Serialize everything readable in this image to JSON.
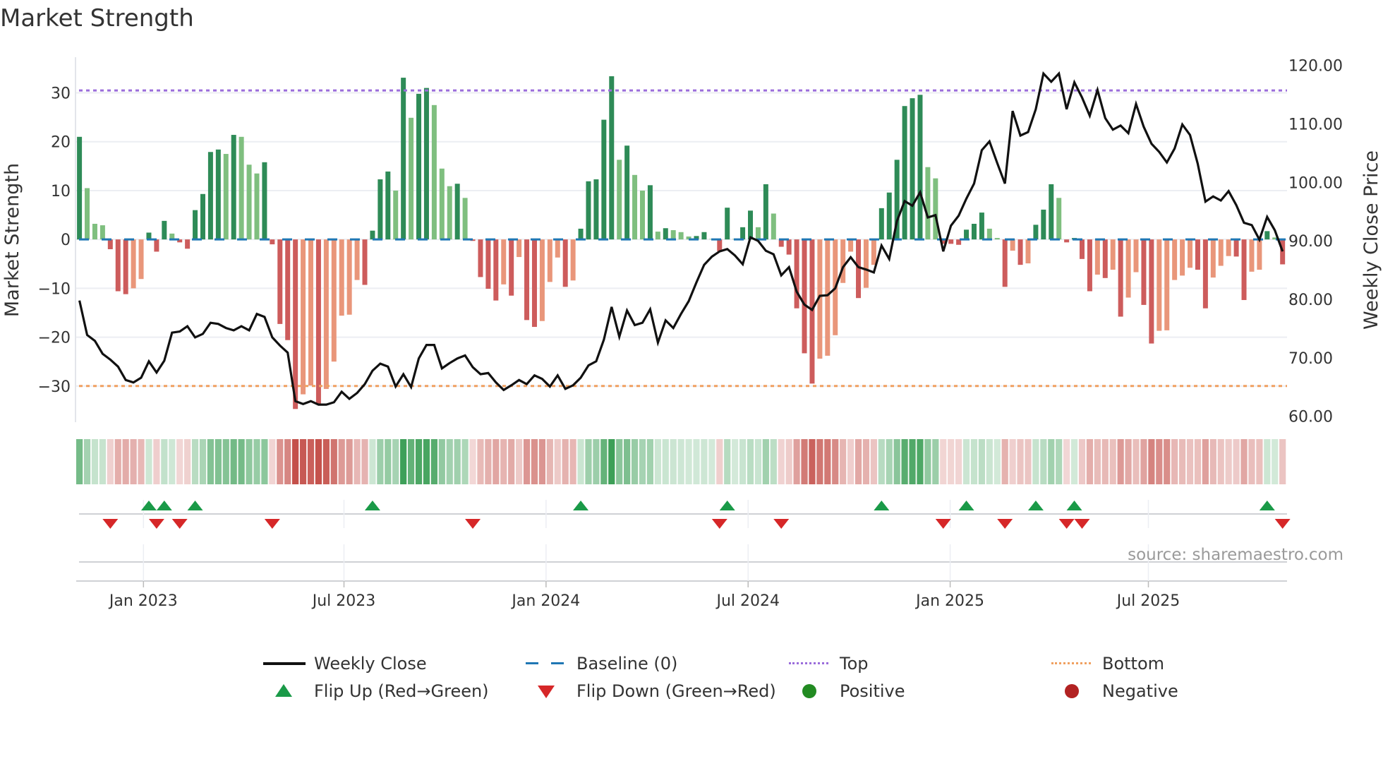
{
  "title": "Market Strength",
  "source": "source: sharemaestro.com",
  "colors": {
    "strong_pos": "#2e8b57",
    "weak_pos": "#7fbf7f",
    "strong_neg": "#cd5c5c",
    "weak_neg": "#e9967a",
    "close": "#111111",
    "baseline": "#1f77b4",
    "top": "#9b6ddb",
    "bottom": "#f0a060",
    "flip_up": "#1a9a48",
    "flip_down": "#d62728",
    "positive": "#228b22",
    "negative": "#b22222"
  },
  "legend": {
    "weekly_close": "Weekly Close",
    "baseline": "Baseline (0)",
    "top": "Top",
    "bottom": "Bottom",
    "flip_up": "Flip Up (Red→Green)",
    "flip_down": "Flip Down (Green→Red)",
    "positive": "Positive",
    "negative": "Negative"
  },
  "chart_data": {
    "type": "bar",
    "title": "Market Strength",
    "ylabel": "Market Strength",
    "y2label": "Weekly Close Price",
    "ylim": [
      -37.4,
      37.3
    ],
    "y2lim": [
      59.0,
      121.4
    ],
    "yticks": [
      30,
      20,
      10,
      0,
      -10,
      -20,
      -30
    ],
    "ytick_labels": [
      "30",
      "20",
      "10",
      "0",
      "−10",
      "−20",
      "−30"
    ],
    "y2ticks": [
      120,
      110,
      100,
      90,
      80,
      70,
      60
    ],
    "y2tick_labels": [
      "120.00",
      "110.00",
      "100.00",
      "90.00",
      "80.00",
      "70.00",
      "60.00"
    ],
    "xticks": [
      {
        "week": 9.3,
        "label": "Jan 2023"
      },
      {
        "week": 35.3,
        "label": "Jul 2023"
      },
      {
        "week": 61.5,
        "label": "Jan 2024"
      },
      {
        "week": 87.7,
        "label": "Jul 2024"
      },
      {
        "week": 113.9,
        "label": "Jan 2025"
      },
      {
        "week": 139.6,
        "label": "Jul 2025"
      }
    ],
    "top_level": 30.5,
    "bottom_level": -30,
    "baseline": 0,
    "grid": true,
    "legend_position": "bottom",
    "strength": [
      21.0,
      10.5,
      3.2,
      2.9,
      -2.0,
      -10.6,
      -11.2,
      -10.0,
      -8.1,
      1.4,
      -2.5,
      3.8,
      1.2,
      -0.6,
      -1.9,
      6.0,
      9.3,
      17.9,
      18.4,
      17.5,
      21.4,
      21.0,
      15.3,
      13.5,
      15.8,
      -1.0,
      -17.3,
      -20.6,
      -34.7,
      -31.7,
      -29.9,
      -33.6,
      -30.6,
      -25.0,
      -15.6,
      -15.4,
      -8.3,
      -9.3,
      1.8,
      12.3,
      13.9,
      10.0,
      33.1,
      24.9,
      29.8,
      31.0,
      27.5,
      14.5,
      10.9,
      11.4,
      8.5,
      -0.3,
      -7.7,
      -10.1,
      -12.5,
      -9.2,
      -11.5,
      -3.6,
      -16.5,
      -17.9,
      -16.7,
      -8.7,
      -3.7,
      -9.7,
      -8.4,
      2.2,
      11.9,
      12.3,
      24.5,
      33.4,
      16.3,
      19.2,
      13.2,
      10.0,
      11.1,
      1.6,
      2.3,
      1.9,
      1.5,
      0.6,
      0.7,
      1.5,
      0.1,
      -2.4,
      6.5,
      0.1,
      2.5,
      5.9,
      2.5,
      11.3,
      5.3,
      -1.5,
      -3.1,
      -14.1,
      -23.3,
      -29.5,
      -24.4,
      -23.8,
      -19.6,
      -8.9,
      -2.5,
      -12.0,
      -9.9,
      -5.2,
      6.4,
      9.6,
      16.3,
      27.3,
      28.9,
      29.6,
      14.8,
      12.5,
      -0.9,
      -0.9,
      -1.1,
      2.0,
      3.2,
      5.5,
      2.2,
      0.3,
      -9.7,
      -2.3,
      -5.2,
      -4.9,
      3.0,
      6.1,
      11.3,
      8.5,
      -0.6,
      0.3,
      -4.0,
      -10.6,
      -7.2,
      -7.9,
      -6.2,
      -15.8,
      -11.9,
      -6.7,
      -13.4,
      -21.3,
      -18.7,
      -18.6,
      -8.3,
      -7.4,
      -5.8,
      -6.2,
      -14.1,
      -7.8,
      -5.4,
      -3.4,
      -3.5,
      -12.4,
      -6.6,
      -6.2,
      1.7,
      0.4,
      -5.1
    ],
    "weekly_close": [
      79.8,
      73.9,
      72.9,
      70.7,
      69.7,
      68.5,
      66.2,
      65.8,
      66.6,
      69.4,
      67.5,
      69.5,
      74.3,
      74.5,
      75.4,
      73.5,
      74.1,
      76.0,
      75.8,
      75.1,
      74.7,
      75.4,
      74.7,
      77.5,
      77.0,
      73.5,
      72.1,
      70.9,
      62.6,
      62.1,
      62.6,
      62.0,
      62.0,
      62.4,
      64.2,
      63.0,
      64.0,
      65.5,
      67.8,
      69.0,
      68.5,
      65.1,
      67.2,
      65.0,
      69.9,
      72.2,
      72.2,
      68.2,
      69.1,
      69.9,
      70.4,
      68.4,
      67.2,
      67.4,
      65.8,
      64.5,
      65.3,
      66.2,
      65.5,
      67.0,
      66.4,
      65.1,
      67.0,
      64.7,
      65.3,
      66.6,
      68.7,
      69.4,
      73.1,
      78.7,
      73.6,
      78.1,
      75.6,
      76.0,
      78.3,
      72.6,
      76.4,
      75.1,
      77.5,
      79.7,
      82.9,
      85.9,
      87.3,
      88.2,
      88.6,
      87.5,
      86.0,
      90.6,
      90.0,
      88.3,
      87.7,
      84.1,
      85.5,
      81.3,
      79.1,
      78.2,
      80.6,
      80.7,
      81.9,
      85.5,
      87.2,
      85.5,
      85.1,
      84.6,
      89.2,
      86.9,
      93.4,
      96.8,
      96.0,
      98.3,
      94.0,
      94.4,
      88.2,
      92.6,
      94.3,
      97.2,
      99.8,
      105.5,
      107.0,
      103.3,
      99.8,
      112.2,
      108.0,
      108.6,
      112.5,
      118.6,
      117.2,
      118.6,
      112.5,
      117.1,
      114.5,
      111.4,
      115.8,
      111.0,
      109.0,
      109.7,
      108.4,
      113.4,
      109.5,
      106.6,
      105.2,
      103.4,
      105.8,
      109.9,
      108.1,
      103.2,
      96.7,
      97.6,
      96.9,
      98.5,
      96.1,
      93.1,
      92.7,
      90.2,
      94.1,
      91.8,
      88.2
    ]
  }
}
